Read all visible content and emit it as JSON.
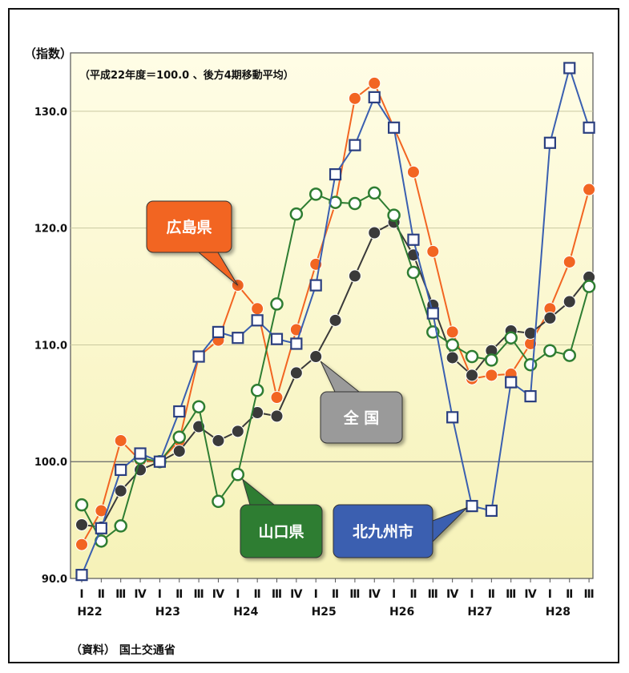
{
  "chart_data": {
    "type": "line",
    "y_unit_label": "（指数）",
    "subtitle": "（平成22年度＝100.0 、後方4期移動平均）",
    "source": "（資料） 国土交通省",
    "ylim": [
      90,
      135
    ],
    "yticks": [
      "90.0",
      "100.0",
      "110.0",
      "120.0",
      "130.0"
    ],
    "ytick_values": [
      90,
      100,
      110,
      120,
      130
    ],
    "quarter_labels": [
      "Ⅰ",
      "Ⅱ",
      "Ⅲ",
      "Ⅳ",
      "Ⅰ",
      "Ⅱ",
      "Ⅲ",
      "Ⅳ",
      "Ⅰ",
      "Ⅱ",
      "Ⅲ",
      "Ⅳ",
      "Ⅰ",
      "Ⅱ",
      "Ⅲ",
      "Ⅳ",
      "Ⅰ",
      "Ⅱ",
      "Ⅲ",
      "Ⅳ",
      "Ⅰ",
      "Ⅱ",
      "Ⅲ",
      "Ⅳ",
      "Ⅰ",
      "Ⅱ",
      "Ⅲ"
    ],
    "year_labels": [
      {
        "label": "H22",
        "index": 0
      },
      {
        "label": "H23",
        "index": 4
      },
      {
        "label": "H24",
        "index": 8
      },
      {
        "label": "H25",
        "index": 12
      },
      {
        "label": "H26",
        "index": 16
      },
      {
        "label": "H27",
        "index": 20
      },
      {
        "label": "H28",
        "index": 24
      }
    ],
    "grid": true,
    "series": [
      {
        "name": "広島県",
        "color": "#f26522",
        "marker": "circle-filled",
        "values": [
          92.9,
          95.8,
          101.8,
          100.1,
          100.0,
          101.8,
          109.0,
          110.4,
          115.1,
          113.1,
          105.5,
          111.3,
          116.9,
          122.1,
          131.1,
          132.4,
          128.6,
          124.8,
          118.0,
          111.1,
          107.1,
          107.4,
          107.5,
          110.1,
          113.1,
          117.1,
          123.3
        ]
      },
      {
        "name": "全国",
        "color": "#3a3a3a",
        "marker": "circle-filled",
        "values": [
          94.6,
          94.4,
          97.5,
          99.3,
          100.0,
          100.9,
          103.0,
          101.8,
          102.6,
          104.2,
          103.9,
          107.6,
          109.0,
          112.1,
          115.9,
          119.6,
          120.5,
          117.7,
          113.4,
          108.9,
          107.4,
          109.5,
          111.2,
          111.0,
          112.3,
          113.7,
          115.8
        ]
      },
      {
        "name": "山口県",
        "color": "#2e7d32",
        "marker": "circle-open",
        "values": [
          96.3,
          93.2,
          94.5,
          100.3,
          100.0,
          102.1,
          104.7,
          96.6,
          98.9,
          106.1,
          113.5,
          121.2,
          122.9,
          122.2,
          122.1,
          123.0,
          121.1,
          116.2,
          111.1,
          110.0,
          109.0,
          108.7,
          110.6,
          108.3,
          109.5,
          109.1,
          115.0
        ]
      },
      {
        "name": "北九州市",
        "color": "#3a5fb0",
        "marker": "square-open",
        "values": [
          90.3,
          94.3,
          99.3,
          100.7,
          100.0,
          104.3,
          109.0,
          111.1,
          110.6,
          112.1,
          110.5,
          110.1,
          115.1,
          124.6,
          127.1,
          131.2,
          128.6,
          119.0,
          112.7,
          103.8,
          96.2,
          95.8,
          106.8,
          105.6,
          127.3,
          133.7,
          128.6
        ]
      }
    ],
    "callouts": [
      {
        "series": "広島県",
        "label": "広島県",
        "color": "#f26522"
      },
      {
        "series": "全国",
        "label": "全 国",
        "color": "#9a9a9a"
      },
      {
        "series": "山口県",
        "label": "山口県",
        "color": "#2e7d32"
      },
      {
        "series": "北九州市",
        "label": "北九州市",
        "color": "#3a5fb0"
      }
    ]
  }
}
